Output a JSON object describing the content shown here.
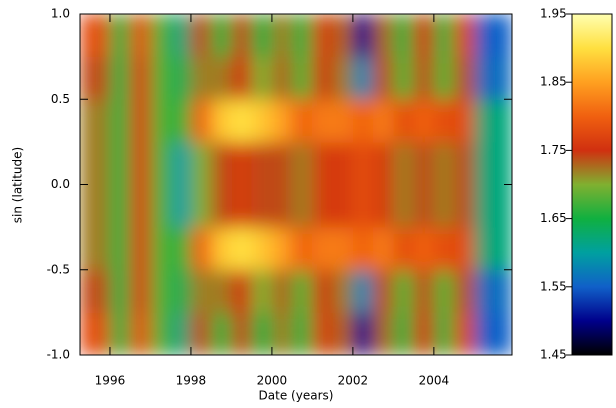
{
  "chart_data": {
    "type": "heatmap",
    "xlabel": "Date (years)",
    "ylabel": "sin (latitude)",
    "xlim": [
      1995.26,
      2005.93
    ],
    "ylim": [
      -1,
      1
    ],
    "xticks": [
      1996,
      1998,
      2000,
      2002,
      2004
    ],
    "yticks": [
      {
        "value": -1,
        "label": "-1.0"
      },
      -0.5,
      {
        "value": 0,
        "label": "0.0"
      },
      0.5,
      {
        "value": 1,
        "label": "1.0"
      }
    ],
    "xbins": [
      1995.26,
      1996,
      1996.5,
      1997,
      1997.5,
      1998,
      1998.5,
      1999,
      1999.5,
      2000,
      2000.5,
      2001,
      2001.5,
      2002,
      2002.5,
      2003,
      2003.5,
      2004,
      2004.5,
      2005,
      2005.93
    ],
    "ybins": [
      -1,
      -0.75,
      -0.5,
      -0.25,
      0,
      0.25,
      0.5,
      0.75,
      1
    ],
    "z": [
      [
        1.78,
        1.65,
        1.78,
        1.68,
        1.62,
        1.74,
        1.66,
        1.74,
        1.65,
        1.72,
        1.66,
        1.76,
        1.73,
        1.5,
        1.73,
        1.66,
        1.75,
        1.66,
        1.77,
        1.55
      ],
      [
        1.74,
        1.65,
        1.76,
        1.68,
        1.64,
        1.72,
        1.72,
        1.75,
        1.7,
        1.73,
        1.68,
        1.75,
        1.72,
        1.58,
        1.74,
        1.68,
        1.74,
        1.68,
        1.74,
        1.56
      ],
      [
        1.72,
        1.66,
        1.76,
        1.68,
        1.66,
        1.8,
        1.88,
        1.9,
        1.88,
        1.85,
        1.8,
        1.82,
        1.82,
        1.8,
        1.82,
        1.78,
        1.8,
        1.78,
        1.78,
        1.62
      ],
      [
        1.72,
        1.66,
        1.76,
        1.68,
        1.6,
        1.7,
        1.74,
        1.76,
        1.74,
        1.74,
        1.72,
        1.76,
        1.76,
        1.78,
        1.76,
        1.72,
        1.74,
        1.72,
        1.74,
        1.62
      ],
      [
        1.72,
        1.66,
        1.76,
        1.68,
        1.6,
        1.7,
        1.74,
        1.76,
        1.74,
        1.74,
        1.72,
        1.76,
        1.76,
        1.78,
        1.76,
        1.72,
        1.74,
        1.72,
        1.74,
        1.62
      ],
      [
        1.72,
        1.66,
        1.76,
        1.68,
        1.66,
        1.8,
        1.88,
        1.9,
        1.88,
        1.85,
        1.8,
        1.82,
        1.82,
        1.8,
        1.82,
        1.78,
        1.8,
        1.78,
        1.78,
        1.62
      ],
      [
        1.74,
        1.65,
        1.76,
        1.68,
        1.64,
        1.72,
        1.72,
        1.75,
        1.7,
        1.73,
        1.68,
        1.75,
        1.72,
        1.58,
        1.74,
        1.68,
        1.74,
        1.68,
        1.74,
        1.56
      ],
      [
        1.78,
        1.65,
        1.78,
        1.68,
        1.62,
        1.74,
        1.66,
        1.74,
        1.65,
        1.72,
        1.66,
        1.76,
        1.73,
        1.5,
        1.73,
        1.66,
        1.75,
        1.66,
        1.77,
        1.55
      ]
    ],
    "zlim": [
      1.45,
      1.95
    ],
    "zticks": [
      1.45,
      1.55,
      1.65,
      1.75,
      1.85,
      1.95
    ],
    "colorscale": [
      "#000000",
      "#00008b",
      "#1060c8",
      "#00a0a0",
      "#10b040",
      "#80b030",
      "#d03010",
      "#f06010",
      "#ffa020",
      "#ffe040",
      "#ffffb0"
    ]
  }
}
